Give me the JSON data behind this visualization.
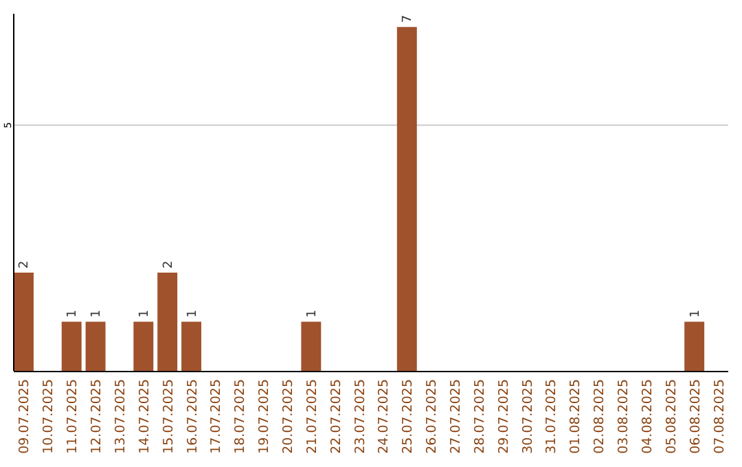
{
  "chart_data": {
    "type": "bar",
    "categories": [
      "09.07.2025",
      "10.07.2025",
      "11.07.2025",
      "12.07.2025",
      "13.07.2025",
      "14.07.2025",
      "15.07.2025",
      "16.07.2025",
      "17.07.2025",
      "18.07.2025",
      "19.07.2025",
      "20.07.2025",
      "21.07.2025",
      "22.07.2025",
      "23.07.2025",
      "24.07.2025",
      "25.07.2025",
      "26.07.2025",
      "27.07.2025",
      "28.07.2025",
      "29.07.2025",
      "30.07.2025",
      "31.07.2025",
      "01.08.2025",
      "02.08.2025",
      "03.08.2025",
      "04.08.2025",
      "05.08.2025",
      "06.08.2025",
      "07.08.2025"
    ],
    "values": [
      2,
      0,
      1,
      1,
      0,
      1,
      2,
      1,
      0,
      0,
      0,
      0,
      1,
      0,
      0,
      0,
      7,
      0,
      0,
      0,
      0,
      0,
      0,
      0,
      0,
      0,
      0,
      0,
      1,
      0
    ],
    "value_labels": [
      "2",
      null,
      "1",
      "1",
      null,
      "1",
      "2",
      "1",
      null,
      null,
      null,
      null,
      "1",
      null,
      null,
      null,
      "7",
      null,
      null,
      null,
      null,
      null,
      null,
      null,
      null,
      null,
      null,
      null,
      "1",
      null
    ],
    "color": "#a0522d",
    "ylim": [
      0,
      7.27
    ],
    "yticks": [
      5
    ],
    "grid": "y"
  }
}
